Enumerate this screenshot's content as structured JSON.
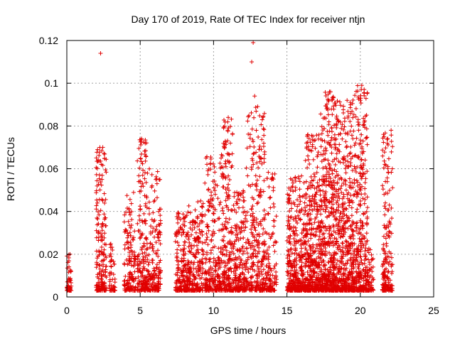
{
  "chart_data": {
    "type": "scatter",
    "title": "Day 170 of 2019, Rate Of TEC Index for receiver ntjn",
    "xlabel": "GPS time / hours",
    "ylabel": "ROTI / TECUs",
    "xlim": [
      0,
      25
    ],
    "ylim": [
      0,
      0.12
    ],
    "xticks": [
      "0",
      "5",
      "10",
      "15",
      "20",
      "25"
    ],
    "yticks": [
      "0",
      "0.02",
      "0.04",
      "0.06",
      "0.08",
      "0.1",
      "0.12"
    ],
    "marker": "plus",
    "color": "#e00000",
    "grid": true,
    "clusters": [
      {
        "x0": 0.0,
        "x1": 0.3,
        "ymax": 0.021,
        "n": 60
      },
      {
        "x0": 2.0,
        "x1": 2.7,
        "ymax": 0.07,
        "n": 200
      },
      {
        "x0": 2.9,
        "x1": 3.3,
        "ymax": 0.025,
        "n": 50
      },
      {
        "x0": 3.9,
        "x1": 4.7,
        "ymax": 0.05,
        "n": 140
      },
      {
        "x0": 4.8,
        "x1": 5.5,
        "ymax": 0.075,
        "n": 190
      },
      {
        "x0": 5.5,
        "x1": 6.4,
        "ymax": 0.06,
        "n": 170
      },
      {
        "x0": 7.4,
        "x1": 8.3,
        "ymax": 0.04,
        "n": 200
      },
      {
        "x0": 8.3,
        "x1": 9.3,
        "ymax": 0.045,
        "n": 210
      },
      {
        "x0": 9.4,
        "x1": 10.5,
        "ymax": 0.067,
        "n": 240
      },
      {
        "x0": 10.5,
        "x1": 11.3,
        "ymax": 0.084,
        "n": 220
      },
      {
        "x0": 11.3,
        "x1": 12.2,
        "ymax": 0.05,
        "n": 200
      },
      {
        "x0": 12.2,
        "x1": 13.5,
        "ymax": 0.09,
        "n": 300
      },
      {
        "x0": 13.5,
        "x1": 14.3,
        "ymax": 0.062,
        "n": 120
      },
      {
        "x0": 15.0,
        "x1": 16.2,
        "ymax": 0.057,
        "n": 350
      },
      {
        "x0": 16.2,
        "x1": 17.3,
        "ymax": 0.077,
        "n": 420
      },
      {
        "x0": 17.3,
        "x1": 18.3,
        "ymax": 0.096,
        "n": 460
      },
      {
        "x0": 18.3,
        "x1": 19.5,
        "ymax": 0.092,
        "n": 460
      },
      {
        "x0": 19.5,
        "x1": 20.5,
        "ymax": 0.099,
        "n": 360
      },
      {
        "x0": 20.5,
        "x1": 20.9,
        "ymax": 0.025,
        "n": 60
      },
      {
        "x0": 21.5,
        "x1": 22.2,
        "ymax": 0.078,
        "n": 180
      }
    ],
    "outliers": [
      {
        "x": 2.3,
        "y": 0.114
      },
      {
        "x": 2.45,
        "y": 0.07
      },
      {
        "x": 5.1,
        "y": 0.074
      },
      {
        "x": 12.7,
        "y": 0.119
      },
      {
        "x": 12.6,
        "y": 0.11
      },
      {
        "x": 12.8,
        "y": 0.094
      },
      {
        "x": 17.9,
        "y": 0.096
      },
      {
        "x": 19.1,
        "y": 0.092
      },
      {
        "x": 20.1,
        "y": 0.099
      },
      {
        "x": 20.0,
        "y": 0.092
      },
      {
        "x": 22.1,
        "y": 0.078
      },
      {
        "x": 11.0,
        "y": 0.084
      }
    ]
  }
}
